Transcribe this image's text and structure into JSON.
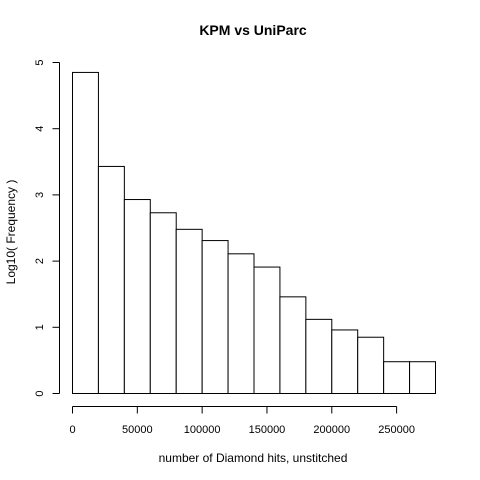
{
  "chart_data": {
    "type": "bar",
    "title": "KPM vs UniParc",
    "xlabel": "number of Diamond hits, unstitched",
    "ylabel": "Log10( Frequency )",
    "bin_width": 20000,
    "bins": [
      {
        "start": 0,
        "end": 20000,
        "value": 4.85
      },
      {
        "start": 20000,
        "end": 40000,
        "value": 3.43
      },
      {
        "start": 40000,
        "end": 60000,
        "value": 2.93
      },
      {
        "start": 60000,
        "end": 80000,
        "value": 2.73
      },
      {
        "start": 80000,
        "end": 100000,
        "value": 2.48
      },
      {
        "start": 100000,
        "end": 120000,
        "value": 2.31
      },
      {
        "start": 120000,
        "end": 140000,
        "value": 2.11
      },
      {
        "start": 140000,
        "end": 160000,
        "value": 1.91
      },
      {
        "start": 160000,
        "end": 180000,
        "value": 1.46
      },
      {
        "start": 180000,
        "end": 200000,
        "value": 1.12
      },
      {
        "start": 200000,
        "end": 220000,
        "value": 0.96
      },
      {
        "start": 220000,
        "end": 240000,
        "value": 0.85
      },
      {
        "start": 240000,
        "end": 260000,
        "value": 0.48
      },
      {
        "start": 260000,
        "end": 280000,
        "value": 0.48
      }
    ],
    "xlim": [
      0,
      280000
    ],
    "ylim": [
      0,
      5
    ],
    "x_ticks": [
      0,
      50000,
      100000,
      150000,
      200000,
      250000
    ],
    "x_tick_labels": [
      "0",
      "50000",
      "100000",
      "150000",
      "200000",
      "250000"
    ],
    "y_ticks": [
      0,
      1,
      2,
      3,
      4,
      5
    ],
    "y_tick_labels": [
      "0",
      "1",
      "2",
      "3",
      "4",
      "5"
    ],
    "grid": false,
    "bar_fill": "#ffffff",
    "bar_stroke": "#000000"
  }
}
